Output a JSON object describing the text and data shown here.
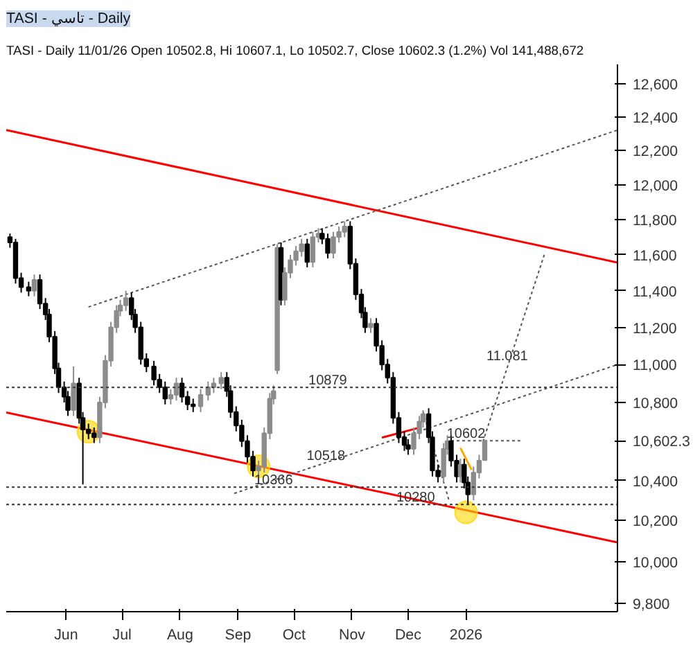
{
  "chart_data": {
    "type": "candlestick",
    "title": "TASI - تاسي - Daily",
    "subtitle": "TASI - Daily 11/01/26 Open 10502.8, Hi 10607.1, Lo 10502.7, Close 10602.3 (1.2%) Vol 141,488,672",
    "x": [
      "2025-05-02",
      "2025-05-05",
      "2025-05-08",
      "2025-05-12",
      "2025-05-15",
      "2025-05-18",
      "2025-05-21",
      "2025-05-23",
      "2025-05-26",
      "2025-05-28",
      "2025-05-31",
      "2025-06-02",
      "2025-06-05",
      "2025-06-08",
      "2025-06-10",
      "2025-06-13",
      "2025-06-16",
      "2025-06-19",
      "2025-06-22",
      "2025-06-25",
      "2025-06-28",
      "2025-06-30",
      "2025-07-03",
      "2025-07-06",
      "2025-07-08",
      "2025-07-11",
      "2025-07-14",
      "2025-07-18",
      "2025-07-21",
      "2025-07-24",
      "2025-07-27",
      "2025-07-30",
      "2025-08-02",
      "2025-08-05",
      "2025-08-08",
      "2025-08-12",
      "2025-08-16",
      "2025-08-19",
      "2025-08-23",
      "2025-08-26",
      "2025-08-28",
      "2025-08-31",
      "2025-09-03",
      "2025-09-06",
      "2025-09-09",
      "2025-09-12",
      "2025-09-15",
      "2025-09-18",
      "2025-09-20",
      "2025-09-22",
      "2025-09-24",
      "2025-09-26",
      "2025-09-29",
      "2025-10-02",
      "2025-10-05",
      "2025-10-08",
      "2025-10-11",
      "2025-10-14",
      "2025-10-16",
      "2025-10-19",
      "2025-10-22",
      "2025-10-25",
      "2025-10-28",
      "2025-10-31",
      "2025-11-03",
      "2025-11-06",
      "2025-11-08",
      "2025-11-11",
      "2025-11-14",
      "2025-11-17",
      "2025-11-20",
      "2025-11-23",
      "2025-11-26",
      "2025-11-29",
      "2025-12-01",
      "2025-12-04",
      "2025-12-07",
      "2025-12-09",
      "2025-12-12",
      "2025-12-14",
      "2025-12-17",
      "2025-12-20",
      "2025-12-22",
      "2025-12-24",
      "2025-12-27",
      "2025-12-29",
      "2025-12-31",
      "2026-01-02",
      "2026-01-05",
      "2026-01-08",
      "2026-01-11"
    ],
    "ohlc": [
      [
        11700,
        11720,
        11640,
        11670
      ],
      [
        11670,
        11690,
        11440,
        11470
      ],
      [
        11470,
        11500,
        11390,
        11420
      ],
      [
        11420,
        11450,
        11370,
        11400
      ],
      [
        11400,
        11490,
        11370,
        11460
      ],
      [
        11460,
        11490,
        11300,
        11330
      ],
      [
        11330,
        11360,
        11240,
        11270
      ],
      [
        11270,
        11300,
        11120,
        11150
      ],
      [
        11150,
        11180,
        10950,
        10980
      ],
      [
        10980,
        11010,
        10850,
        10880
      ],
      [
        10880,
        10910,
        10800,
        10830
      ],
      [
        10830,
        10860,
        10730,
        10760
      ],
      [
        10760,
        10990,
        10730,
        10900
      ],
      [
        10900,
        10930,
        10690,
        10720
      ],
      [
        10720,
        10750,
        10380,
        10660
      ],
      [
        10660,
        10690,
        10610,
        10640
      ],
      [
        10640,
        10670,
        10590,
        10620
      ],
      [
        10620,
        10830,
        10590,
        10800
      ],
      [
        10800,
        11050,
        10770,
        11020
      ],
      [
        11020,
        11230,
        10990,
        11200
      ],
      [
        11200,
        11320,
        11170,
        11290
      ],
      [
        11290,
        11350,
        11260,
        11320
      ],
      [
        11320,
        11400,
        11290,
        11360
      ],
      [
        11360,
        11390,
        11240,
        11270
      ],
      [
        11270,
        11300,
        11170,
        11200
      ],
      [
        11200,
        11230,
        11000,
        11030
      ],
      [
        11030,
        11060,
        10960,
        10990
      ],
      [
        10990,
        11020,
        10890,
        10920
      ],
      [
        10920,
        10950,
        10850,
        10880
      ],
      [
        10880,
        10910,
        10790,
        10820
      ],
      [
        10820,
        10870,
        10790,
        10840
      ],
      [
        10840,
        10930,
        10810,
        10900
      ],
      [
        10900,
        10930,
        10800,
        10830
      ],
      [
        10830,
        10860,
        10760,
        10790
      ],
      [
        10790,
        10820,
        10750,
        10780
      ],
      [
        10780,
        10870,
        10750,
        10840
      ],
      [
        10840,
        10910,
        10810,
        10880
      ],
      [
        10880,
        10930,
        10850,
        10900
      ],
      [
        10900,
        10960,
        10870,
        10930
      ],
      [
        10930,
        10960,
        10830,
        10860
      ],
      [
        10860,
        10890,
        10720,
        10750
      ],
      [
        10750,
        10780,
        10650,
        10680
      ],
      [
        10680,
        10710,
        10570,
        10600
      ],
      [
        10600,
        10630,
        10490,
        10520
      ],
      [
        10520,
        10550,
        10420,
        10450
      ],
      [
        10450,
        10500,
        10380,
        10470
      ],
      [
        10470,
        10670,
        10440,
        10640
      ],
      [
        10640,
        10850,
        10610,
        10820
      ],
      [
        10820,
        10890,
        10790,
        10860
      ],
      [
        10970,
        11660,
        10950,
        11640
      ],
      [
        11640,
        11670,
        11320,
        11350
      ],
      [
        11350,
        11530,
        11320,
        11500
      ],
      [
        11500,
        11600,
        11470,
        11570
      ],
      [
        11570,
        11650,
        11540,
        11620
      ],
      [
        11620,
        11690,
        11590,
        11660
      ],
      [
        11660,
        11690,
        11530,
        11560
      ],
      [
        11560,
        11730,
        11530,
        11700
      ],
      [
        11700,
        11750,
        11670,
        11720
      ],
      [
        11720,
        11750,
        11660,
        11690
      ],
      [
        11690,
        11720,
        11580,
        11610
      ],
      [
        11610,
        11730,
        11580,
        11700
      ],
      [
        11700,
        11760,
        11670,
        11730
      ],
      [
        11730,
        11790,
        11700,
        11760
      ],
      [
        11760,
        11790,
        11520,
        11550
      ],
      [
        11550,
        11580,
        11350,
        11380
      ],
      [
        11380,
        11410,
        11250,
        11280
      ],
      [
        11280,
        11310,
        11170,
        11200
      ],
      [
        11200,
        11250,
        11170,
        11220
      ],
      [
        11220,
        11250,
        11070,
        11100
      ],
      [
        11100,
        11130,
        10970,
        11000
      ],
      [
        11000,
        11030,
        10900,
        10930
      ],
      [
        10930,
        10960,
        10690,
        10720
      ],
      [
        10720,
        10750,
        10590,
        10620
      ],
      [
        10620,
        10650,
        10550,
        10580
      ],
      [
        10580,
        10610,
        10530,
        10560
      ],
      [
        10560,
        10670,
        10530,
        10640
      ],
      [
        10640,
        10730,
        10610,
        10700
      ],
      [
        10700,
        10760,
        10670,
        10740
      ],
      [
        10740,
        10770,
        10590,
        10620
      ],
      [
        10620,
        10650,
        10420,
        10450
      ],
      [
        10450,
        10480,
        10390,
        10420
      ],
      [
        10420,
        10590,
        10390,
        10560
      ],
      [
        10560,
        10630,
        10530,
        10600
      ],
      [
        10600,
        10630,
        10470,
        10500
      ],
      [
        10500,
        10530,
        10390,
        10420
      ],
      [
        10420,
        10510,
        10390,
        10480
      ],
      [
        10480,
        10510,
        10360,
        10390
      ],
      [
        10390,
        10420,
        10280,
        10330
      ],
      [
        10330,
        10470,
        10300,
        10440
      ],
      [
        10440,
        10530,
        10410,
        10500
      ],
      [
        10502.8,
        10607.1,
        10502.7,
        10602.3
      ]
    ],
    "series": [
      {
        "type": "line",
        "color": "#ff0000",
        "line_style": "solid",
        "x": [
          "2025-04-30",
          "2026-03-23"
        ],
        "values": [
          12322,
          11557
        ]
      },
      {
        "type": "line",
        "color": "#ff0000",
        "line_style": "solid",
        "x": [
          "2025-04-30",
          "2026-03-23"
        ],
        "values": [
          10748,
          10093
        ]
      },
      {
        "type": "line",
        "color": "#ff0000",
        "line_style": "solid",
        "x": [
          "2025-11-17",
          "2025-12-07"
        ],
        "values": [
          10618,
          10669
        ]
      },
      {
        "type": "line",
        "color": "#555555",
        "line_style": "dotted",
        "x": [
          "2025-06-13",
          "2026-03-23"
        ],
        "values": [
          11311,
          12322
        ]
      },
      {
        "type": "line",
        "color": "#555555",
        "line_style": "dotted",
        "x": [
          "2025-08-30",
          "2026-03-23"
        ],
        "values": [
          10335,
          11000
        ]
      },
      {
        "type": "line",
        "color": "#555555",
        "line_style": "dotted",
        "x": [
          "2026-01-10",
          "2026-02-12"
        ],
        "values": [
          10597,
          11605
        ]
      },
      {
        "type": "line",
        "color": "#555555",
        "line_style": "dotted",
        "x": [
          "2025-12-09",
          "2025-12-23"
        ],
        "values": [
          10752,
          10296
        ]
      },
      {
        "type": "line",
        "color": "#555555",
        "line_style": "dotted",
        "x": [
          "2025-12-24",
          "2026-01-30"
        ],
        "values": [
          10602,
          10602
        ]
      },
      {
        "type": "line",
        "color": "#ffa500",
        "line_style": "solid",
        "x": [
          "2025-12-29",
          "2026-01-04"
        ],
        "values": [
          10565,
          10453
        ]
      },
      {
        "type": "scatter",
        "color": "#ffd700",
        "marker": "circle",
        "x": [
          "2025-06-13",
          "2025-09-12",
          "2026-01-01"
        ],
        "values": [
          10648,
          10471,
          10240
        ]
      }
    ],
    "ref_lines": [
      {
        "axis": "y",
        "value": 10879,
        "color": "#333333",
        "line_style": "dotted"
      },
      {
        "axis": "y",
        "value": 10366,
        "color": "#333333",
        "line_style": "dotted"
      },
      {
        "axis": "y",
        "value": 10280,
        "color": "#333333",
        "line_style": "dotted"
      }
    ],
    "annotations": [
      {
        "text": "10879",
        "x": "2025-10-19",
        "y": 10879
      },
      {
        "text": "10518",
        "x": "2025-10-18",
        "y": 10490
      },
      {
        "text": "10366",
        "x": "2025-09-20",
        "y": 10366
      },
      {
        "text": "10280",
        "x": "2025-12-05",
        "y": 10280
      },
      {
        "text": "10602",
        "x": "2026-01-01",
        "y": 10602
      },
      {
        "text": "11.081",
        "x": "2026-01-23",
        "y": 11010
      }
    ],
    "log": "y",
    "xlim": [
      "2025-04-30",
      "2026-03-23"
    ],
    "ylim": [
      9760,
      12720
    ],
    "xticks": [
      {
        "value": "2025-06-01",
        "label": "Jun"
      },
      {
        "value": "2025-07-01",
        "label": "Jul"
      },
      {
        "value": "2025-08-01",
        "label": "Aug"
      },
      {
        "value": "2025-09-01",
        "label": "Sep"
      },
      {
        "value": "2025-10-01",
        "label": "Oct"
      },
      {
        "value": "2025-11-01",
        "label": "Nov"
      },
      {
        "value": "2025-12-01",
        "label": "Dec"
      },
      {
        "value": "2026-01-01",
        "label": "2026"
      }
    ],
    "yticks": [
      {
        "value": 9800,
        "label": "9,800"
      },
      {
        "value": 10000,
        "label": "10,000"
      },
      {
        "value": 10200,
        "label": "10,200"
      },
      {
        "value": 10400,
        "label": "10,400"
      },
      {
        "value": 10602.3,
        "label": "10,602.3"
      },
      {
        "value": 10800,
        "label": "10,800"
      },
      {
        "value": 11000,
        "label": "11,000"
      },
      {
        "value": 11200,
        "label": "11,200"
      },
      {
        "value": 11400,
        "label": "11,400"
      },
      {
        "value": 11600,
        "label": "11,600"
      },
      {
        "value": 11800,
        "label": "11,800"
      },
      {
        "value": 12000,
        "label": "12,000"
      },
      {
        "value": 12200,
        "label": "12,200"
      },
      {
        "value": 12400,
        "label": "12,400"
      },
      {
        "value": 12600,
        "label": "12,600"
      }
    ],
    "grid": false
  }
}
